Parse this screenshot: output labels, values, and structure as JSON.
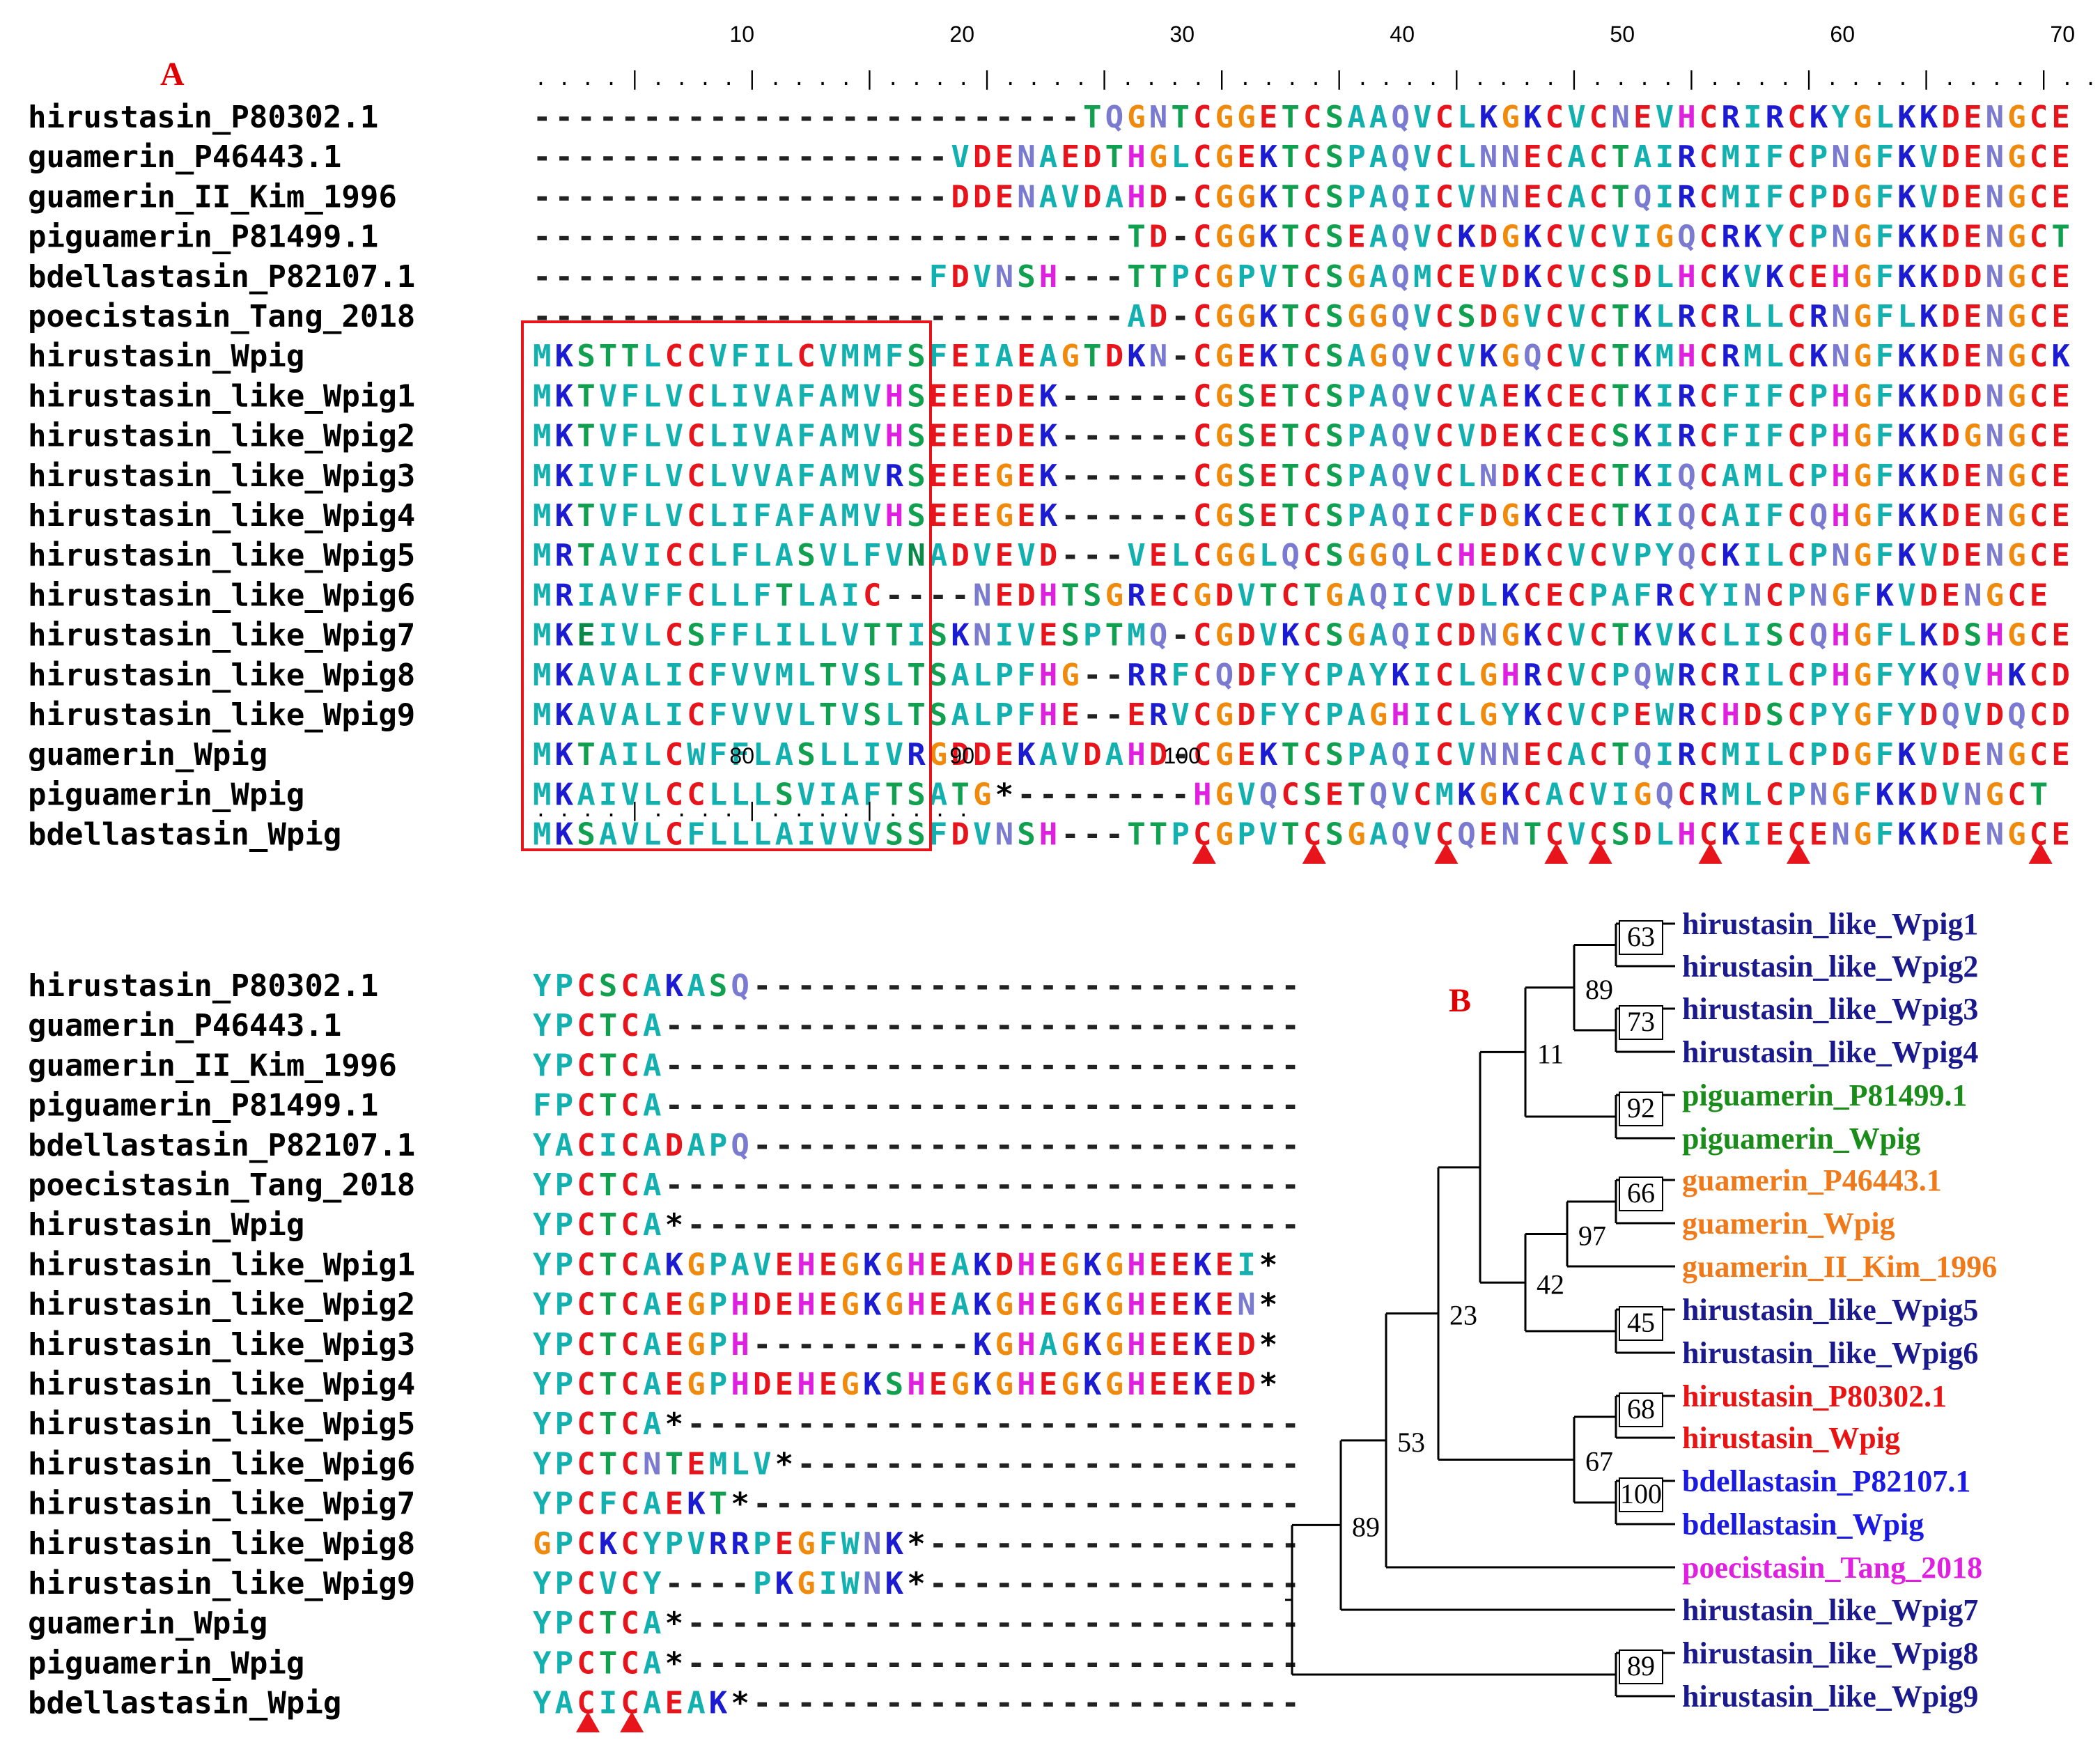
{
  "panel_a_label": "A",
  "panel_b_label": "B",
  "names": [
    "hirustasin_P80302.1",
    "guamerin_P46443.1",
    "guamerin_II_Kim_1996",
    "piguamerin_P81499.1",
    "bdellastasin_P82107.1",
    "poecistasin_Tang_2018",
    "hirustasin_Wpig",
    "hirustasin_like_Wpig1",
    "hirustasin_like_Wpig2",
    "hirustasin_like_Wpig3",
    "hirustasin_like_Wpig4",
    "hirustasin_like_Wpig5",
    "hirustasin_like_Wpig6",
    "hirustasin_like_Wpig7",
    "hirustasin_like_Wpig8",
    "hirustasin_like_Wpig9",
    "guamerin_Wpig",
    "piguamerin_Wpig",
    "bdellastasin_Wpig"
  ],
  "block1": {
    "ruler_numbers": [
      "10",
      "20",
      "30",
      "40",
      "50",
      "60",
      "70"
    ],
    "ruler_dots": ". . . . | . . . . | . . . . | . . . . | . . . . | . . . . | . . . . | . . . . | . . . . | . . . . | . . . . | . . . . | . . . . | . . . . |",
    "sequences": [
      "-------------------------TQGNTCGGETCSAAQVCLKGKCVCNEVHCRIRCKYGLKKDENGCE",
      "-------------------VDENAEDTHGLCGEKTCSPAQVCLNNECACTAIRCMIFCPNGFKVDENGCE",
      "-------------------DDENAVDAHD-CGGKTCSPAQICVNNECACTQIRCMIFCPDGFKVDENGCE",
      "---------------------------TD-CGGKTCSEAQVCKDGKCVCVIGQCRKYCPNGFKKDENGCT",
      "------------------FDVNSH---TTPCGPVTCSGAQMCEVDKCVCSDLHCKVKCEHGFKKDDNGCE",
      "---------------------------AD-CGGKTCSGGQVCSDGVCVCTKLRCRLLCRNGFLKDENGCE",
      "MKSTTLCCVFILCVMMFSFEIAEAGTDKN-CGEKTCSAGQVCVKGQCVCTKMHCRMLCKNGFKKDENGCK",
      "MKTVFLVCLIVAFAMVHSEEEDEK------CGSETCSPAQVCVAEKCECTKIRCFIFCPHGFKKDDNGCE",
      "MKTVFLVCLIVAFAMVHSEEEDEK------CGSETCSPAQVCVDEKCECSKIRCFIFCPHGFKKDGNGCE",
      "MKIVFLVCLVVAFAMVRSEEEGEK------CGSETCSPAQVCLNDKCECTKIQCAMLCPHGFKKDENGCE",
      "MKTVFLVCLIFAFAMVHSEEEGEK------CGSETCSPAQICFDGKCECTKIQCAIFCQHGFKKDENGCE",
      "MRTAVICCLFLASVLFVNADVEVD---VELCGGLQCSGGQLCHEDKCVCVPYQCKILCPNGFKVDENGCE",
      "MRIAVFFCLLFTLAIC----NEDHTSGRECGDVTCTGAQICVDLKCECPAFRCYINCPNGFKVDENGCE",
      "MKEIVLCSFFLILLVTTISKNIVESPTMQ-CGDVKCSGAQICDNGKCVCTKVKCLISCQHGFLKDSHGCE",
      "MKAVALICFVVMLTVSLTSALPFHG--RRFCQDFYCPAYKICLGHRCVCPQWRCRILCPHGFYKQVHKCD",
      "MKAVALICFVVVLTVSLTSALPFHE--ERVCGDFYCPAGHICLGYKCVCPEWRCHDSCPYGFYDQVDQCD",
      "MKTAILCWFFLASLLIVRGDDEKAVDAHD-CGEKTCSPAQICVNNECACTQIRCMILCPDGFKVDENGCE",
      "MKAIVLCCLLLSVIAFTSATG*--------HGVQCSETQVCMKGKCACVIGQCRMLCPNGFKKDVNGCT",
      "MKSAVLCFLLLAIVVVSSFDVNSH---TTPCGPVTCSGAQVCQENTCVCSDLHCKIECENGFKKDENGCE"
    ]
  },
  "block2": {
    "ruler_numbers": [
      "80",
      "90",
      "100"
    ],
    "ruler_dots": ". . . . | . . . . | . . . . | . . . .",
    "sequences": [
      "YPCSCAKASQ-------------------------",
      "YPCTCA-----------------------------",
      "YPCTCA-----------------------------",
      "FPCTCA-----------------------------",
      "YACICADAPQ-------------------------",
      "YPCTCA-----------------------------",
      "YPCTCA*----------------------------",
      "YPCTCAKGPAVEHEGKGHEAKDHEGKGHEEKEI*",
      "YPCTCAEGPHDEHEGKGHEAKGHEGKGHEEKEN*",
      "YPCTCAEGPH----------KGHAGKGHEEKED*",
      "YPCTCAEGPHDEHEGKSHEGKGHEGKGHEEKED*",
      "YPCTCA*----------------------------",
      "YPCTCNTEMLV*-----------------------",
      "YPCFCAEKT*-------------------------",
      "GPCKCYPVRRPEGFWNK*-----------------",
      "YPCVCY----PKGIWNK*-----------------",
      "YPCTCA*----------------------------",
      "YPCTCA*----------------------------",
      "YACICAEAK*-------------------------"
    ]
  },
  "cysteine_markers_block1": [
    31,
    36,
    42,
    47,
    49,
    54,
    58,
    69
  ],
  "cysteine_markers_block2": [
    73,
    75
  ],
  "colors": {
    "C": "#e8141c",
    "E": "#e8141c",
    "D": "#e8141c",
    "K": "#1b1bd1",
    "R": "#1b1bd1",
    "H": "#e020e0",
    "A": "#13b0b0",
    "F": "#13b0b0",
    "I": "#13b0b0",
    "L": "#13b0b0",
    "M": "#13b0b0",
    "P": "#13b0b0",
    "V": "#13b0b0",
    "W": "#13b0b0",
    "Y": "#13b0b0",
    "G": "#f08a0c",
    "S": "#10a050",
    "T": "#10a050",
    "N": "#7a7ad0",
    "Q": "#7a7ad0",
    "-": "#222222",
    "*": "#000000",
    "signal": "#0a8a4a",
    "box": "#e8141c",
    "marker": "#e8141c"
  },
  "tree": {
    "leaves": [
      {
        "label": "hirustasin_like_Wpig1",
        "color": "#1a1a8c"
      },
      {
        "label": "hirustasin_like_Wpig2",
        "color": "#1a1a8c"
      },
      {
        "label": "hirustasin_like_Wpig3",
        "color": "#1a1a8c"
      },
      {
        "label": "hirustasin_like_Wpig4",
        "color": "#1a1a8c"
      },
      {
        "label": "piguamerin_P81499.1",
        "color": "#1a8c1a"
      },
      {
        "label": "piguamerin_Wpig",
        "color": "#1a8c1a"
      },
      {
        "label": "guamerin_P46443.1",
        "color": "#f07a1a"
      },
      {
        "label": "guamerin_Wpig",
        "color": "#f07a1a"
      },
      {
        "label": "guamerin_II_Kim_1996",
        "color": "#f07a1a"
      },
      {
        "label": "hirustasin_like_Wpig5",
        "color": "#1a1a8c"
      },
      {
        "label": "hirustasin_like_Wpig6",
        "color": "#1a1a8c"
      },
      {
        "label": "hirustasin_P80302.1",
        "color": "#e81414"
      },
      {
        "label": "hirustasin_Wpig",
        "color": "#e81414"
      },
      {
        "label": "bdellastasin_P82107.1",
        "color": "#1a1ae0"
      },
      {
        "label": "bdellastasin_Wpig",
        "color": "#1a1ae0"
      },
      {
        "label": "poecistasin_Tang_2018",
        "color": "#e020e0"
      },
      {
        "label": "hirustasin_like_Wpig7",
        "color": "#1a1a8c"
      },
      {
        "label": "hirustasin_like_Wpig8",
        "color": "#1a1a8c"
      },
      {
        "label": "hirustasin_like_Wpig9",
        "color": "#1a1a8c"
      }
    ],
    "bootstrap": [
      "63",
      "73",
      "89",
      "92",
      "11",
      "66",
      "97",
      "42",
      "45",
      "68",
      "100",
      "67",
      "23",
      "53",
      "89",
      "89"
    ]
  }
}
